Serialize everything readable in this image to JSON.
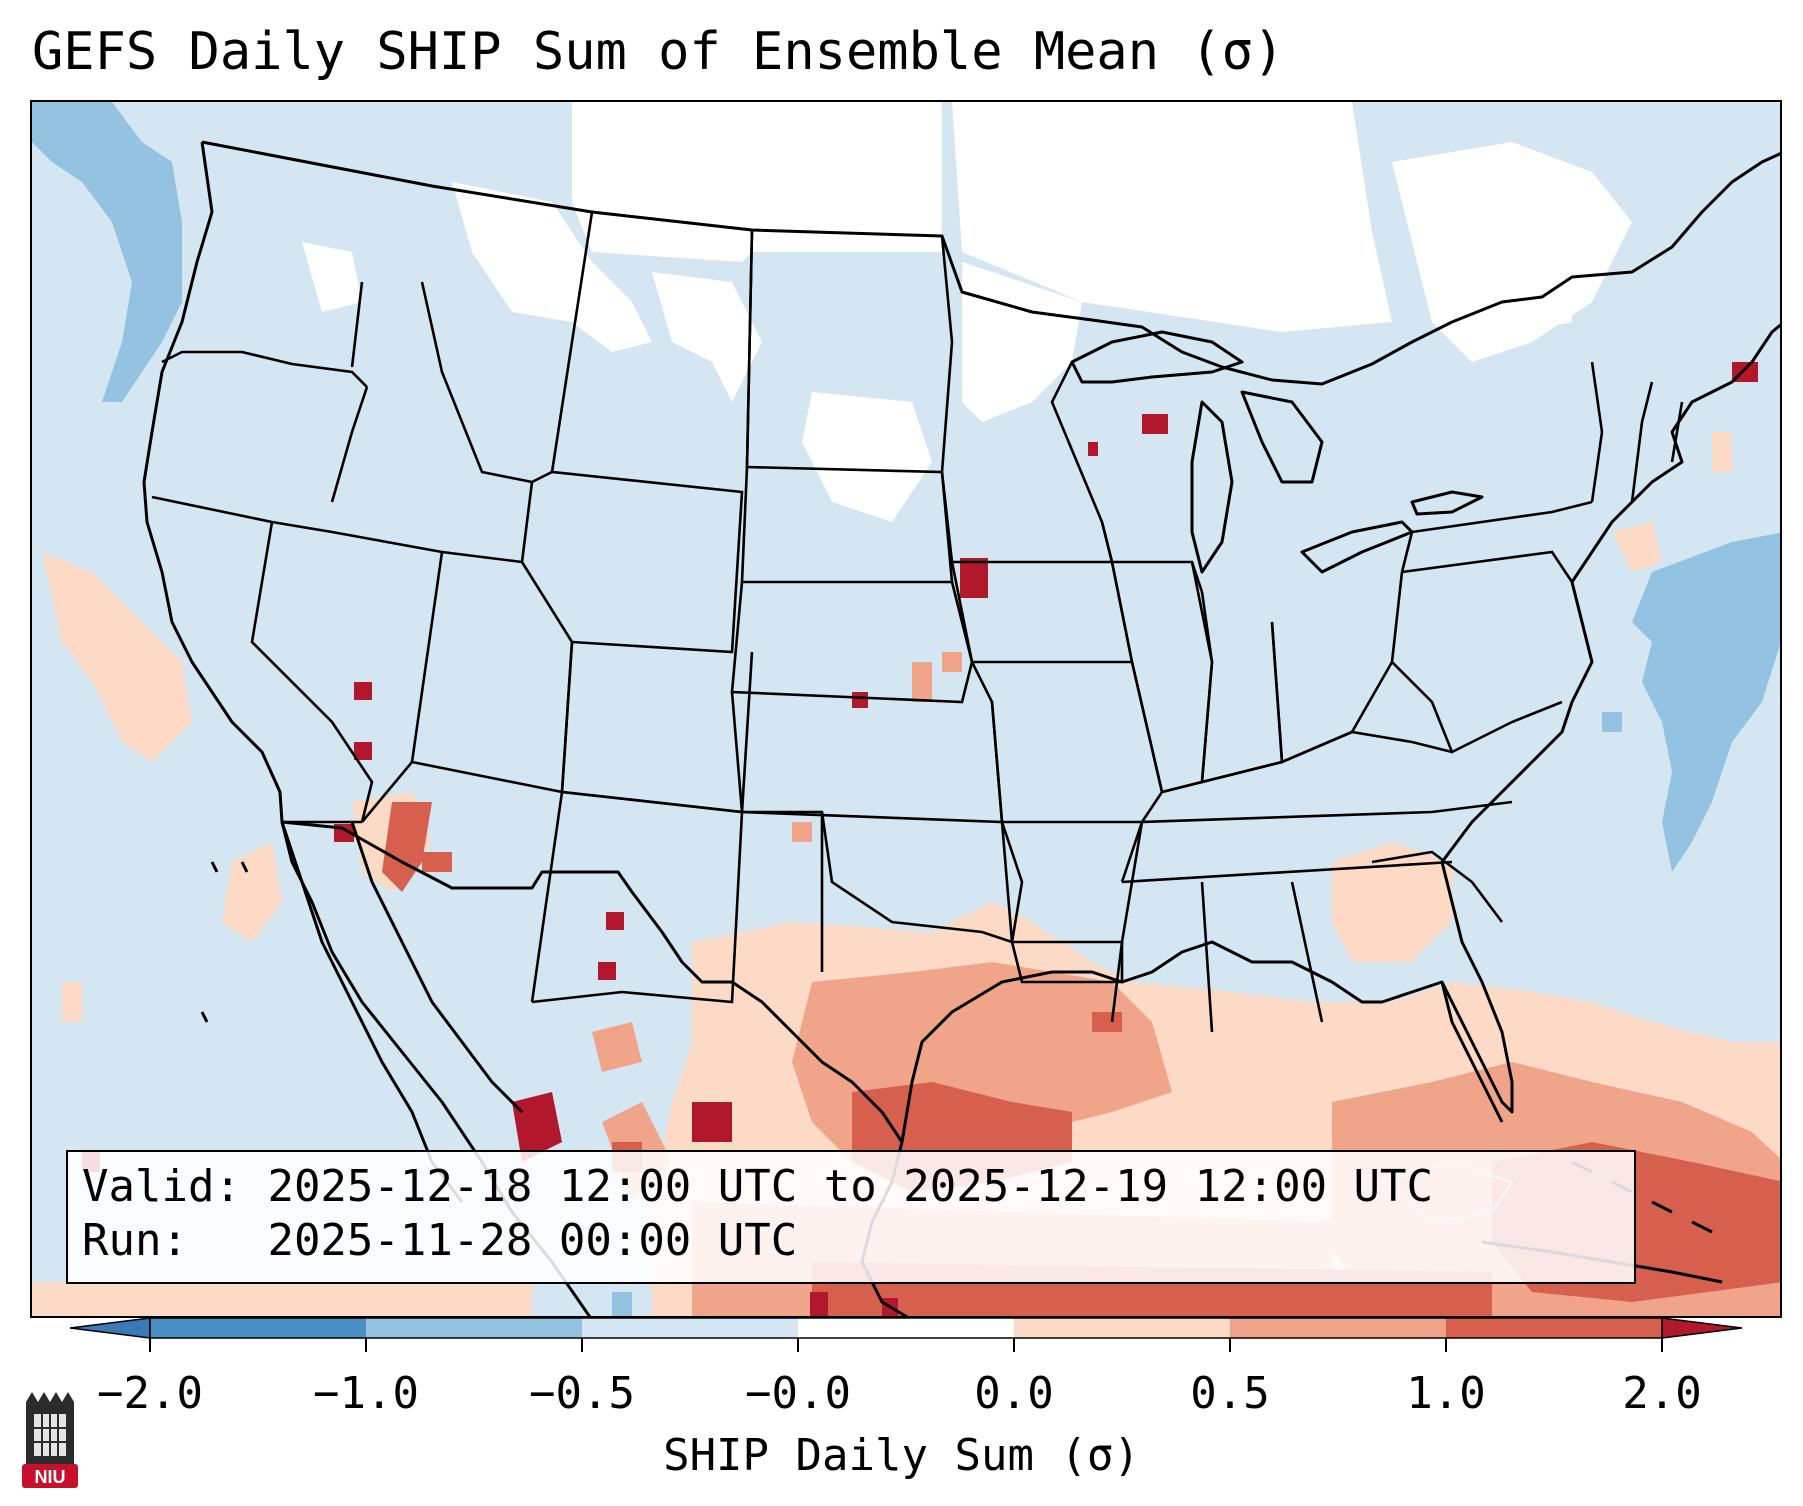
{
  "title": "GEFS Daily SHIP Sum of Ensemble Mean (σ)",
  "info": {
    "valid_label": "Valid:",
    "valid_value": "2025-12-18 12:00 UTC to 2025-12-19 12:00 UTC",
    "run_label": "Run:",
    "run_value": "2025-11-28 00:00 UTC"
  },
  "colorbar": {
    "label": "SHIP Daily Sum (σ)",
    "ticks": [
      "−2.0",
      "−1.0",
      "−0.5",
      "−0.0",
      "0.0",
      "0.5",
      "1.0",
      "2.0"
    ],
    "colors": {
      "under": "#3a7ab6",
      "bin_neg2_neg1": "#4a8fc4",
      "bin_neg1_neg05": "#93c3e0",
      "bin_neg05_0": "#d4e6f1",
      "bin_0_0": "#ffffff",
      "bin_0_05": "#fcdac6",
      "bin_05_1": "#f0a58a",
      "bin_1_2": "#d6604d",
      "over": "#b2182b"
    }
  },
  "map": {
    "projection": "Lambert Conformal (CONUS)",
    "ocean_color": "#d4e6f1",
    "border_color": "#000000"
  },
  "logo": {
    "text": "NIU"
  }
}
